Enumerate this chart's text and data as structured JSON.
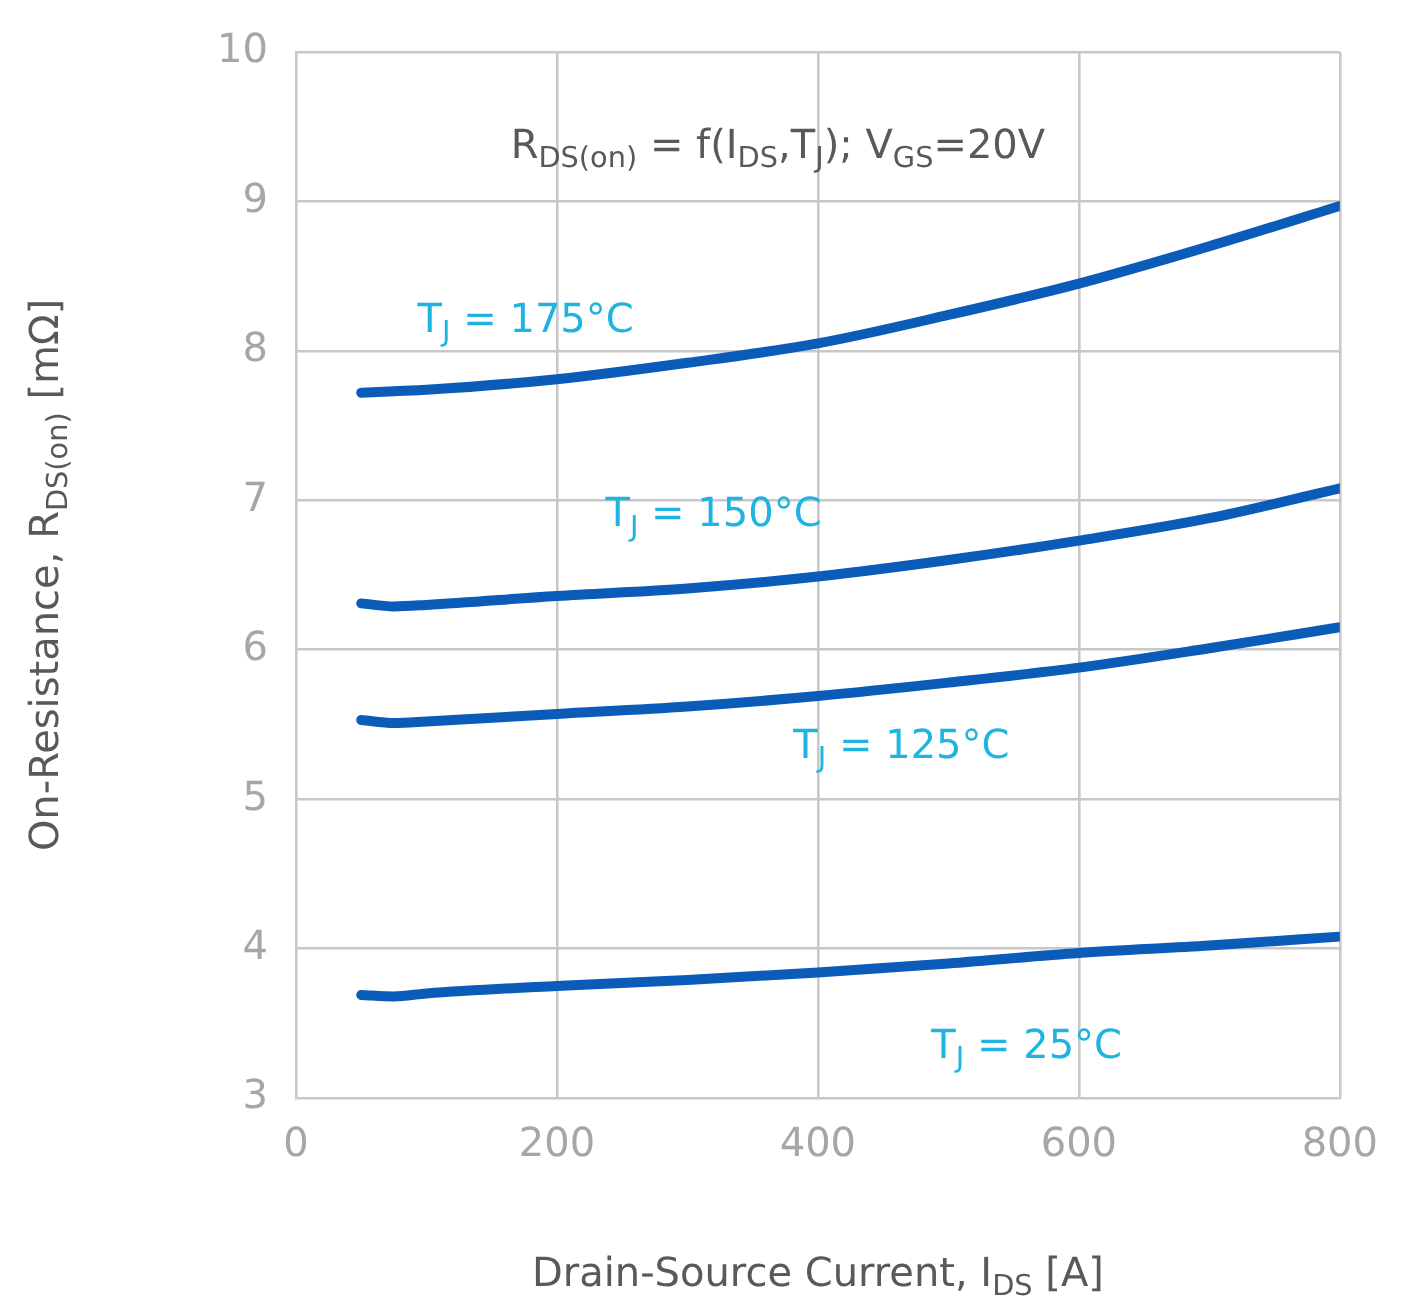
{
  "chart_data": {
    "type": "line",
    "title": "R$_{DS(on)}$ = f(I$_{DS}$,T$_{J}$); V$_{GS}$=20V",
    "xlabel": "Drain-Source Current, I$_{DS}$ [A]",
    "ylabel": "On-Resistance, R$_{DS(on)}$ [mΩ]",
    "x": [
      50,
      75,
      100,
      200,
      300,
      400,
      500,
      600,
      700,
      800
    ],
    "series": [
      {
        "name": "T$_{J}$ = 175°C",
        "color": "#0a5cb8",
        "values": [
          7.72,
          7.73,
          7.74,
          7.81,
          7.92,
          8.05,
          8.24,
          8.45,
          8.7,
          8.97
        ]
      },
      {
        "name": "T$_{J}$ = 150°C",
        "color": "#0a5cb8",
        "values": [
          6.31,
          6.29,
          6.3,
          6.36,
          6.41,
          6.49,
          6.6,
          6.73,
          6.88,
          7.08
        ]
      },
      {
        "name": "T$_{J}$ = 125°C",
        "color": "#0a5cb8",
        "values": [
          5.53,
          5.51,
          5.52,
          5.57,
          5.62,
          5.69,
          5.78,
          5.88,
          6.01,
          6.15
        ]
      },
      {
        "name": "T$_{J}$ = 25°C",
        "color": "#0a5cb8",
        "values": [
          3.69,
          3.68,
          3.7,
          3.75,
          3.79,
          3.84,
          3.9,
          3.97,
          4.02,
          4.08
        ]
      }
    ],
    "xlim": [
      0,
      800
    ],
    "xticks": [
      0,
      200,
      400,
      600,
      800
    ],
    "ylim": [
      3,
      10
    ],
    "yticks": [
      3,
      4,
      5,
      6,
      7,
      8,
      9,
      10
    ],
    "grid": true,
    "legend": false,
    "marker": "none",
    "line_style": "solid"
  }
}
